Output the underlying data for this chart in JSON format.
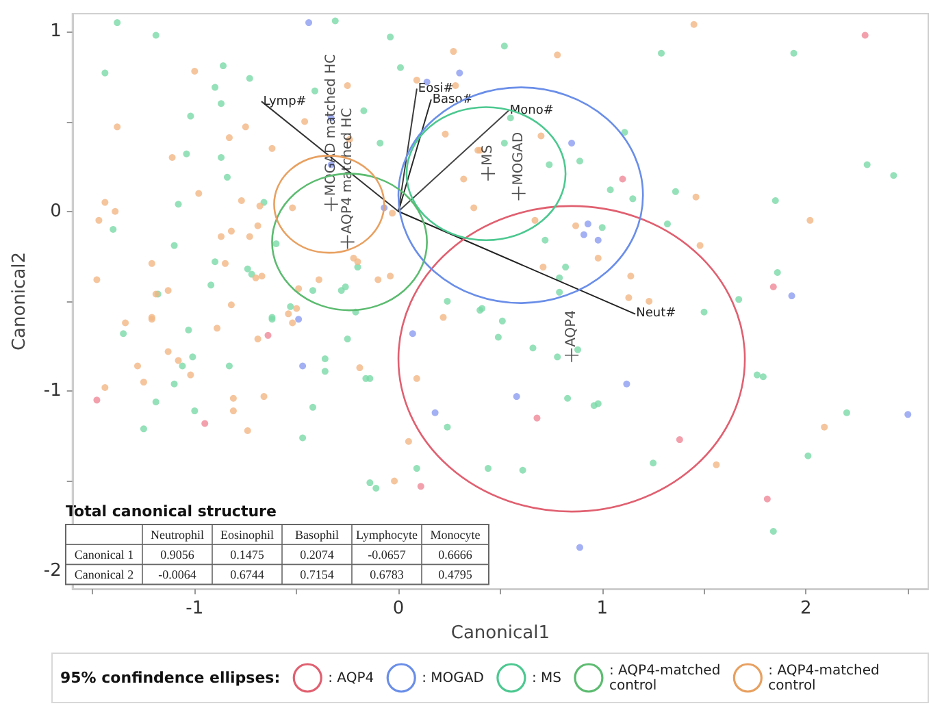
{
  "chart_data": {
    "type": "scatter",
    "xlabel": "Canonical1",
    "ylabel": "Canonical2",
    "legend_title": "95% confindence ellipses:",
    "grid": false,
    "marker": "circle",
    "xlim": [
      -1.6,
      2.6
    ],
    "ylim": [
      -2.1,
      1.1
    ],
    "xticks": [
      {
        "value": -1.5,
        "label": null
      },
      -1,
      {
        "value": -0.5,
        "label": null
      },
      0,
      {
        "value": 0.5,
        "label": null
      },
      1,
      {
        "value": 1.5,
        "label": null
      },
      2,
      {
        "value": 2.5,
        "label": null
      }
    ],
    "yticks": [
      -2,
      {
        "value": -1.5,
        "label": null
      },
      -1,
      {
        "value": -0.5,
        "label": null
      },
      0,
      {
        "value": 0.5,
        "label": null
      },
      1
    ],
    "annotations": [
      "Total canonical structure",
      "Neutrophil",
      "Eosinophil",
      "Basophil",
      "Lymphocyte",
      "Monocyte",
      "Canonical 1",
      "0.9056",
      "0.1475",
      "0.2074",
      "-0.0657",
      "0.6666",
      "Canonical 2",
      "-0.0064",
      "0.6744",
      "0.7154",
      "0.6783",
      "0.4795",
      ": AQP4",
      ": MOGAD",
      ": MS",
      ": AQP4-matched control",
      ": AQP4-matched control"
    ],
    "series": [
      {
        "color": "#7ad9a8",
        "x": [
          -1.38,
          -1.19,
          -1.44,
          -0.9,
          -0.87,
          -1.02,
          -0.73,
          -0.86,
          -0.04,
          0.01,
          -0.41,
          -0.17,
          -0.09,
          -1.04,
          -0.87,
          -0.84,
          -1.08,
          -1.4,
          -1.1,
          -0.9,
          -0.74,
          -0.72,
          -0.92,
          -1.18,
          -0.42,
          -0.28,
          -0.26,
          -0.2,
          -0.6,
          -0.53,
          -0.62,
          -0.21,
          0.24,
          0.4,
          -0.66,
          -0.31,
          0.52,
          1.29,
          1.94,
          1.11,
          0.89,
          0.74,
          0.52,
          0.55,
          1.04,
          1.15,
          1.36,
          1.32,
          1.0,
          0.72,
          0.82,
          0.79,
          0.79,
          0.41,
          0.51,
          1.5,
          1.67,
          1.85,
          1.86,
          2.3,
          2.43,
          -1.35,
          -1.03,
          -0.62,
          -0.25,
          -1.01,
          -1.06,
          -0.83,
          -1.1,
          -0.36,
          -0.36,
          -0.16,
          -0.14,
          -1.19,
          -1.0,
          -0.42,
          -1.25,
          -0.47,
          -0.14,
          -0.11,
          0.24,
          0.44,
          0.09,
          0.49,
          0.66,
          0.78,
          0.88,
          0.83,
          0.96,
          0.98,
          0.61,
          1.25,
          1.76,
          1.79,
          2.2,
          2.01,
          1.84
        ],
        "values": [
          1.05,
          0.98,
          0.77,
          0.69,
          0.6,
          0.53,
          0.74,
          0.81,
          0.97,
          0.8,
          0.67,
          0.56,
          0.38,
          0.32,
          0.3,
          0.19,
          0.04,
          -0.1,
          -0.19,
          -0.28,
          -0.32,
          -0.35,
          -0.41,
          -0.46,
          -0.44,
          -0.44,
          -0.42,
          -0.31,
          -0.18,
          -0.53,
          -0.59,
          -0.56,
          -0.5,
          -0.55,
          0.05,
          1.06,
          0.92,
          0.88,
          0.88,
          0.44,
          0.28,
          0.26,
          0.38,
          0.52,
          0.12,
          0.07,
          0.11,
          -0.07,
          -0.09,
          -0.16,
          -0.31,
          -0.37,
          -0.45,
          -0.54,
          -0.61,
          -0.56,
          -0.49,
          0.06,
          -0.34,
          0.26,
          0.2,
          -0.68,
          -0.66,
          -0.6,
          -0.71,
          -0.81,
          -0.86,
          -0.86,
          -0.96,
          -0.82,
          -0.89,
          -0.93,
          -0.93,
          -1.06,
          -1.11,
          -1.09,
          -1.21,
          -1.26,
          -1.51,
          -1.54,
          -1.2,
          -1.43,
          -1.43,
          -0.7,
          -0.76,
          -0.81,
          -0.77,
          -1.04,
          -1.08,
          -1.07,
          -1.44,
          -1.4,
          -0.91,
          -0.92,
          -1.12,
          -1.36,
          -1.78
        ]
      },
      {
        "color": "#f2b684",
        "x": [
          -1.0,
          -1.38,
          -0.83,
          -0.75,
          -1.11,
          -0.62,
          -0.46,
          -0.25,
          -0.24,
          0.09,
          0.27,
          0.28,
          0.23,
          0.4,
          0.32,
          0.37,
          -1.44,
          -1.39,
          -1.47,
          -0.98,
          -0.77,
          -0.68,
          -0.69,
          -0.52,
          -0.82,
          -0.87,
          -0.73,
          -1.21,
          -0.85,
          -0.7,
          -0.67,
          -1.48,
          -1.13,
          -1.19,
          -0.22,
          -0.2,
          -0.39,
          -0.49,
          -0.1,
          -0.04,
          -0.82,
          -1.21,
          -0.54,
          -0.5,
          -0.03,
          0.22,
          1.45,
          0.78,
          0.7,
          0.39,
          1.46,
          0.67,
          0.87,
          0.98,
          1.48,
          2.02,
          0.71,
          1.14,
          1.13,
          1.23,
          -1.34,
          -1.21,
          -0.89,
          -0.69,
          -0.52,
          -1.13,
          -1.08,
          -1.28,
          -1.02,
          -1.25,
          -1.44,
          -0.81,
          -0.66,
          -0.81,
          -0.74,
          -0.19,
          0.09,
          0.05,
          -0.02,
          2.09,
          1.56
        ],
        "values": [
          0.78,
          0.47,
          0.41,
          0.47,
          0.3,
          0.35,
          0.5,
          0.7,
          0.4,
          0.73,
          0.89,
          0.7,
          0.43,
          0.34,
          0.18,
          0.02,
          0.05,
          0.0,
          -0.05,
          0.1,
          0.06,
          0.03,
          -0.08,
          0.02,
          -0.11,
          -0.14,
          -0.14,
          -0.29,
          -0.29,
          -0.37,
          -0.36,
          -0.38,
          -0.44,
          -0.46,
          -0.26,
          -0.28,
          -0.38,
          -0.43,
          -0.38,
          -0.36,
          -0.52,
          -0.59,
          -0.57,
          -0.54,
          -0.01,
          -0.59,
          1.04,
          0.87,
          0.42,
          0.34,
          0.08,
          -0.05,
          -0.08,
          -0.26,
          -0.19,
          -0.05,
          -0.31,
          -0.36,
          -0.48,
          -0.5,
          -0.62,
          -0.6,
          -0.65,
          -0.71,
          -0.62,
          -0.78,
          -0.83,
          -0.86,
          -0.91,
          -0.95,
          -0.98,
          -1.04,
          -1.03,
          -1.11,
          -1.22,
          -0.87,
          -0.93,
          -1.28,
          -1.5,
          -1.2,
          -1.41
        ]
      },
      {
        "color": "#8c9cf0",
        "x": [
          -0.44,
          0.3,
          0.14,
          -0.33,
          -0.33,
          -0.49,
          -0.07,
          0.85,
          0.93,
          0.91,
          0.98,
          1.93,
          -0.47,
          0.07,
          0.18,
          1.12,
          0.58,
          2.5,
          0.89
        ],
        "values": [
          1.05,
          0.77,
          0.72,
          0.52,
          0.26,
          -0.6,
          0.02,
          0.38,
          -0.07,
          -0.13,
          -0.16,
          -0.47,
          -0.86,
          -0.68,
          -1.12,
          -0.96,
          -1.03,
          -1.13,
          -1.87
        ]
      },
      {
        "color": "#f08898",
        "x": [
          2.29,
          1.1,
          1.84,
          -1.48,
          -0.64,
          -0.95,
          0.11,
          0.68,
          1.38,
          1.81
        ],
        "values": [
          0.98,
          0.18,
          -0.42,
          -1.05,
          -0.69,
          -1.18,
          -1.53,
          -1.15,
          -1.27,
          -1.6
        ]
      },
      {
        "type": "line",
        "name": "Lymp#",
        "color": "#333333",
        "marker": "none",
        "line_style": "solid",
        "x": [
          0,
          -0.67
        ],
        "values": [
          0,
          0.61
        ]
      },
      {
        "type": "line",
        "name": "Eosi#",
        "color": "#3d3d3d",
        "marker": "none",
        "line_style": "solid",
        "x": [
          0,
          0.09
        ],
        "values": [
          0,
          0.68
        ]
      },
      {
        "type": "line",
        "name": "Baso#",
        "color": "#292929",
        "marker": "none",
        "line_style": "solid",
        "x": [
          0,
          0.16
        ],
        "values": [
          0,
          0.62
        ]
      },
      {
        "type": "line",
        "name": "Mono#",
        "color": "#454545",
        "marker": "none",
        "line_style": "solid",
        "x": [
          0,
          0.54
        ],
        "values": [
          0,
          0.56
        ]
      },
      {
        "type": "line",
        "name": "Neut#",
        "color": "#222222",
        "marker": "none",
        "line_style": "solid",
        "x": [
          0,
          1.16
        ],
        "values": [
          0,
          -0.57
        ]
      },
      {
        "color": "#222222",
        "marker": "cross",
        "x": [
          0.85,
          0.59,
          0.44,
          -0.33,
          -0.25
        ],
        "values": [
          -0.8,
          0.1,
          0.21,
          0.04,
          -0.17
        ],
        "value_labels": [
          "AQP4",
          "MOGAD",
          "MS",
          "MOGAD matched HC",
          "AQP4 matched HC"
        ]
      }
    ]
  }
}
